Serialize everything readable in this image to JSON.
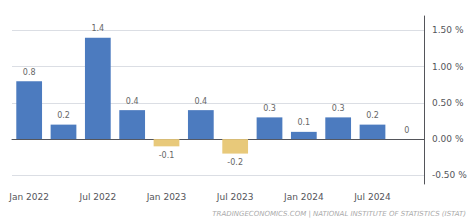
{
  "chart_data": {
    "type": "bar",
    "categories": [
      "Jan 2022",
      null,
      "Jul 2022",
      null,
      "Jan 2023",
      null,
      "Jul 2023",
      null,
      "Jan 2024",
      null,
      "Jul 2024",
      null
    ],
    "values": [
      0.8,
      0.2,
      1.4,
      0.4,
      -0.1,
      0.4,
      -0.2,
      0.3,
      0.1,
      0.3,
      0.2,
      0.0
    ],
    "colors": [
      "#4c7bbf",
      "#4c7bbf",
      "#4c7bbf",
      "#4c7bbf",
      "#e8c97a",
      "#4c7bbf",
      "#e8c97a",
      "#4c7bbf",
      "#4c7bbf",
      "#4c7bbf",
      "#4c7bbf",
      "#4c7bbf"
    ],
    "ylim": [
      -0.62,
      1.7
    ],
    "yticks": [
      {
        "value": -0.5,
        "label": "-0.50 %"
      },
      {
        "value": 0.0,
        "label": "0.00 %"
      },
      {
        "value": 0.5,
        "label": "0.50 %"
      },
      {
        "value": 1.0,
        "label": "1.00 %"
      },
      {
        "value": 1.5,
        "label": "1.50 %"
      }
    ],
    "grid": true,
    "data_labels": true,
    "annotation": "TRADINGECONOMICS.COM | NATIONAL INSTITUTE OF STATISTICS (ISTAT)"
  }
}
